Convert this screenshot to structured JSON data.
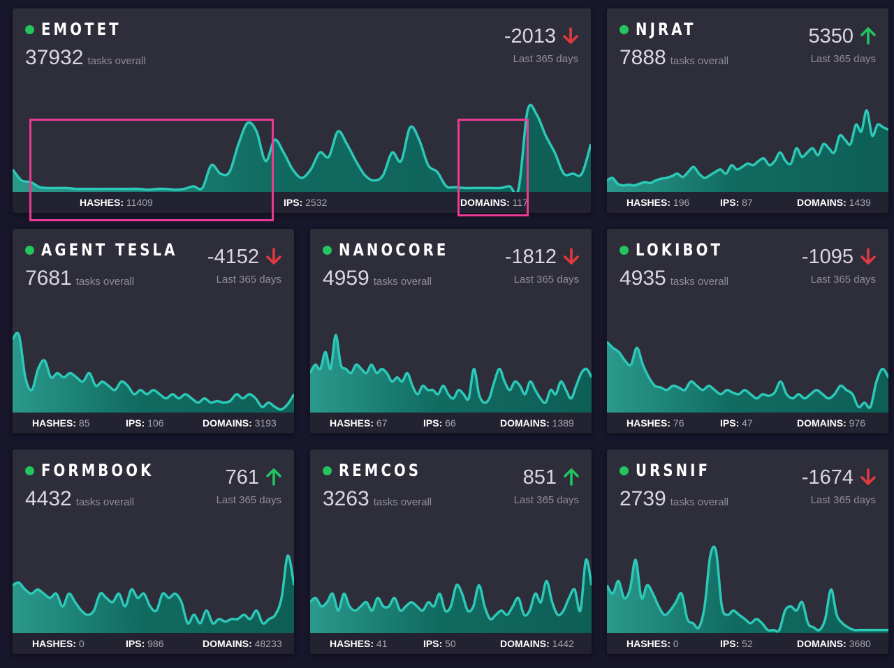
{
  "theme": {
    "accent": "#2cc8b8",
    "status_color": "#22c55e",
    "down_color": "#e03a3e",
    "up_color": "#22c55e",
    "highlight": "#ec3b92"
  },
  "cards": [
    {
      "name": "EMOTET",
      "total": "37932",
      "tasks_label": "tasks overall",
      "delta": "-2013",
      "direction": "down",
      "period": "Last 365 days",
      "stats": {
        "hashes_label": "HASHES:",
        "hashes": "11409",
        "ips_label": "IPS:",
        "ips": "2532",
        "domains_label": "DOMAINS:",
        "domains": "117"
      },
      "series": [
        0.25,
        0.12,
        0.1,
        0.04,
        0.03,
        0.03,
        0.03,
        0.02,
        0.02,
        0.02,
        0.02,
        0.02,
        0.02,
        0.02,
        0.02,
        0.01,
        0.02,
        0.02,
        0.01,
        0.02,
        0.05,
        0.03,
        0.3,
        0.2,
        0.22,
        0.55,
        0.8,
        0.7,
        0.35,
        0.6,
        0.45,
        0.25,
        0.15,
        0.25,
        0.45,
        0.4,
        0.7,
        0.55,
        0.35,
        0.18,
        0.12,
        0.18,
        0.45,
        0.35,
        0.75,
        0.6,
        0.3,
        0.22,
        0.05,
        0.04,
        0.03,
        0.03,
        0.03,
        0.03,
        0.03,
        0.05,
        0.02,
        0.95,
        0.9,
        0.65,
        0.45,
        0.2,
        0.2,
        0.2,
        0.55
      ]
    },
    {
      "name": "NJRAT",
      "total": "7888",
      "tasks_label": "tasks overall",
      "delta": "5350",
      "direction": "up",
      "period": "Last 365 days",
      "stats": {
        "hashes_label": "HASHES:",
        "hashes": "196",
        "ips_label": "IPS:",
        "ips": "87",
        "domains_label": "DOMAINS:",
        "domains": "1439"
      }
    },
    {
      "name": "AGENT TESLA",
      "total": "7681",
      "tasks_label": "tasks overall",
      "delta": "-4152",
      "direction": "down",
      "period": "Last 365 days",
      "stats": {
        "hashes_label": "HASHES:",
        "hashes": "85",
        "ips_label": "IPS:",
        "ips": "106",
        "domains_label": "DOMAINS:",
        "domains": "3193"
      }
    },
    {
      "name": "NANOCORE",
      "total": "4959",
      "tasks_label": "tasks overall",
      "delta": "-1812",
      "direction": "down",
      "period": "Last 365 days",
      "stats": {
        "hashes_label": "HASHES:",
        "hashes": "67",
        "ips_label": "IPS:",
        "ips": "66",
        "domains_label": "DOMAINS:",
        "domains": "1389"
      }
    },
    {
      "name": "LOKIBOT",
      "total": "4935",
      "tasks_label": "tasks overall",
      "delta": "-1095",
      "direction": "down",
      "period": "Last 365 days",
      "stats": {
        "hashes_label": "HASHES:",
        "hashes": "76",
        "ips_label": "IPS:",
        "ips": "47",
        "domains_label": "DOMAINS:",
        "domains": "976"
      }
    },
    {
      "name": "FORMBOOK",
      "total": "4432",
      "tasks_label": "tasks overall",
      "delta": "761",
      "direction": "up",
      "period": "Last 365 days",
      "stats": {
        "hashes_label": "HASHES:",
        "hashes": "0",
        "ips_label": "IPS:",
        "ips": "986",
        "domains_label": "DOMAINS:",
        "domains": "48233"
      }
    },
    {
      "name": "REMCOS",
      "total": "3263",
      "tasks_label": "tasks overall",
      "delta": "851",
      "direction": "up",
      "period": "Last 365 days",
      "stats": {
        "hashes_label": "HASHES:",
        "hashes": "41",
        "ips_label": "IPS:",
        "ips": "50",
        "domains_label": "DOMAINS:",
        "domains": "1442"
      }
    },
    {
      "name": "URSNIF",
      "total": "2739",
      "tasks_label": "tasks overall",
      "delta": "-1674",
      "direction": "down",
      "period": "Last 365 days",
      "stats": {
        "hashes_label": "HASHES:",
        "hashes": "0",
        "ips_label": "IPS:",
        "ips": "52",
        "domains_label": "DOMAINS:",
        "domains": "3680"
      }
    }
  ],
  "chart_data": [
    {
      "type": "area",
      "title": "EMOTET",
      "values": [
        0.25,
        0.12,
        0.1,
        0.04,
        0.03,
        0.03,
        0.03,
        0.02,
        0.02,
        0.02,
        0.02,
        0.02,
        0.02,
        0.02,
        0.02,
        0.01,
        0.02,
        0.02,
        0.01,
        0.02,
        0.05,
        0.03,
        0.3,
        0.2,
        0.22,
        0.55,
        0.8,
        0.7,
        0.35,
        0.6,
        0.45,
        0.25,
        0.15,
        0.25,
        0.45,
        0.4,
        0.7,
        0.55,
        0.35,
        0.18,
        0.12,
        0.18,
        0.45,
        0.35,
        0.75,
        0.6,
        0.3,
        0.22,
        0.05,
        0.04,
        0.03,
        0.03,
        0.03,
        0.03,
        0.03,
        0.05,
        0.02,
        0.95,
        0.9,
        0.65,
        0.45,
        0.2,
        0.2,
        0.2,
        0.55
      ]
    },
    {
      "type": "area",
      "title": "NJRAT",
      "values": [
        0.12,
        0.15,
        0.08,
        0.06,
        0.07,
        0.06,
        0.08,
        0.1,
        0.09,
        0.12,
        0.14,
        0.15,
        0.17,
        0.2,
        0.16,
        0.22,
        0.28,
        0.2,
        0.15,
        0.18,
        0.22,
        0.25,
        0.2,
        0.3,
        0.25,
        0.28,
        0.32,
        0.3,
        0.35,
        0.38,
        0.3,
        0.35,
        0.45,
        0.35,
        0.32,
        0.5,
        0.4,
        0.45,
        0.5,
        0.42,
        0.55,
        0.5,
        0.45,
        0.65,
        0.6,
        0.55,
        0.78,
        0.7,
        0.95,
        0.65,
        0.78,
        0.75,
        0.72
      ]
    },
    {
      "type": "area",
      "title": "AGENT TESLA",
      "values": [
        0.85,
        0.9,
        0.4,
        0.25,
        0.5,
        0.6,
        0.4,
        0.45,
        0.4,
        0.45,
        0.4,
        0.35,
        0.45,
        0.3,
        0.35,
        0.3,
        0.25,
        0.35,
        0.3,
        0.2,
        0.25,
        0.2,
        0.25,
        0.2,
        0.15,
        0.2,
        0.15,
        0.2,
        0.15,
        0.1,
        0.15,
        0.1,
        0.12,
        0.1,
        0.12,
        0.2,
        0.15,
        0.2,
        0.15,
        0.05,
        0.1,
        0.05,
        0.02,
        0.08,
        0.2
      ]
    },
    {
      "type": "area",
      "title": "NANOCORE",
      "values": [
        0.45,
        0.55,
        0.5,
        0.7,
        0.5,
        0.9,
        0.55,
        0.5,
        0.45,
        0.55,
        0.5,
        0.45,
        0.55,
        0.45,
        0.5,
        0.45,
        0.35,
        0.4,
        0.35,
        0.45,
        0.3,
        0.2,
        0.3,
        0.25,
        0.25,
        0.2,
        0.3,
        0.2,
        0.15,
        0.25,
        0.2,
        0.15,
        0.5,
        0.2,
        0.1,
        0.15,
        0.35,
        0.5,
        0.35,
        0.25,
        0.35,
        0.3,
        0.2,
        0.35,
        0.25,
        0.15,
        0.1,
        0.25,
        0.2,
        0.35,
        0.25,
        0.15,
        0.3,
        0.45,
        0.5,
        0.4
      ]
    },
    {
      "type": "area",
      "title": "LOKIBOT",
      "values": [
        0.82,
        0.75,
        0.7,
        0.6,
        0.55,
        0.75,
        0.55,
        0.4,
        0.3,
        0.28,
        0.25,
        0.3,
        0.28,
        0.25,
        0.35,
        0.3,
        0.25,
        0.3,
        0.25,
        0.2,
        0.25,
        0.22,
        0.2,
        0.25,
        0.2,
        0.15,
        0.2,
        0.18,
        0.22,
        0.35,
        0.2,
        0.15,
        0.2,
        0.15,
        0.2,
        0.25,
        0.2,
        0.15,
        0.2,
        0.3,
        0.25,
        0.2,
        0.05,
        0.1,
        0.05,
        0.35,
        0.5,
        0.4
      ]
    },
    {
      "type": "area",
      "title": "FORMBOOK",
      "values": [
        0.55,
        0.58,
        0.5,
        0.45,
        0.5,
        0.45,
        0.4,
        0.45,
        0.3,
        0.45,
        0.35,
        0.25,
        0.2,
        0.25,
        0.45,
        0.4,
        0.35,
        0.45,
        0.3,
        0.5,
        0.4,
        0.45,
        0.3,
        0.25,
        0.45,
        0.4,
        0.45,
        0.35,
        0.1,
        0.2,
        0.1,
        0.25,
        0.1,
        0.15,
        0.12,
        0.15,
        0.15,
        0.2,
        0.15,
        0.25,
        0.1,
        0.15,
        0.2,
        0.4,
        0.9,
        0.55
      ]
    },
    {
      "type": "area",
      "title": "REMCOS",
      "values": [
        0.35,
        0.4,
        0.3,
        0.35,
        0.45,
        0.25,
        0.45,
        0.3,
        0.25,
        0.3,
        0.35,
        0.25,
        0.4,
        0.3,
        0.3,
        0.4,
        0.25,
        0.3,
        0.35,
        0.3,
        0.25,
        0.35,
        0.3,
        0.45,
        0.25,
        0.3,
        0.55,
        0.45,
        0.25,
        0.3,
        0.55,
        0.3,
        0.15,
        0.2,
        0.25,
        0.2,
        0.3,
        0.4,
        0.2,
        0.25,
        0.45,
        0.35,
        0.6,
        0.35,
        0.2,
        0.25,
        0.4,
        0.5,
        0.25,
        0.85,
        0.55
      ]
    },
    {
      "type": "area",
      "title": "URSNIF",
      "values": [
        0.55,
        0.45,
        0.6,
        0.4,
        0.5,
        0.85,
        0.4,
        0.55,
        0.45,
        0.3,
        0.2,
        0.25,
        0.35,
        0.45,
        0.15,
        0.1,
        0.05,
        0.3,
        0.9,
        0.95,
        0.3,
        0.2,
        0.25,
        0.2,
        0.15,
        0.1,
        0.15,
        0.1,
        0.02,
        0.02,
        0.02,
        0.25,
        0.3,
        0.25,
        0.35,
        0.1,
        0.05,
        0.02,
        0.15,
        0.5,
        0.2,
        0.1,
        0.05,
        0.02,
        0.02,
        0.02,
        0.02,
        0.02,
        0.02,
        0.02
      ]
    }
  ]
}
